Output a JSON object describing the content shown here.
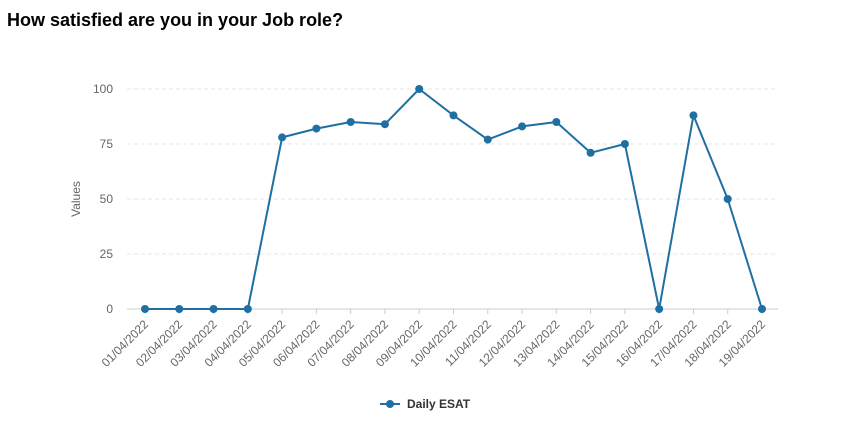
{
  "page_title": "How satisfied are you in your Job role?",
  "chart_data": {
    "type": "line",
    "title": "How satisfied are you in your Job role?",
    "xlabel": "",
    "ylabel": "Values",
    "ylim": [
      0,
      100
    ],
    "yticks": [
      0,
      25,
      50,
      75,
      100
    ],
    "grid": true,
    "legend_position": "bottom",
    "categories": [
      "01/04/2022",
      "02/04/2022",
      "03/04/2022",
      "04/04/2022",
      "05/04/2022",
      "06/04/2022",
      "07/04/2022",
      "08/04/2022",
      "09/04/2022",
      "10/04/2022",
      "11/04/2022",
      "12/04/2022",
      "13/04/2022",
      "14/04/2022",
      "15/04/2022",
      "16/04/2022",
      "17/04/2022",
      "18/04/2022",
      "19/04/2022"
    ],
    "series": [
      {
        "name": "Daily ESAT",
        "color": "#1f6fa3",
        "values": [
          0,
          0,
          0,
          0,
          78,
          82,
          85,
          84,
          100,
          88,
          77,
          83,
          85,
          71,
          75,
          0,
          88,
          50,
          0
        ]
      }
    ]
  }
}
